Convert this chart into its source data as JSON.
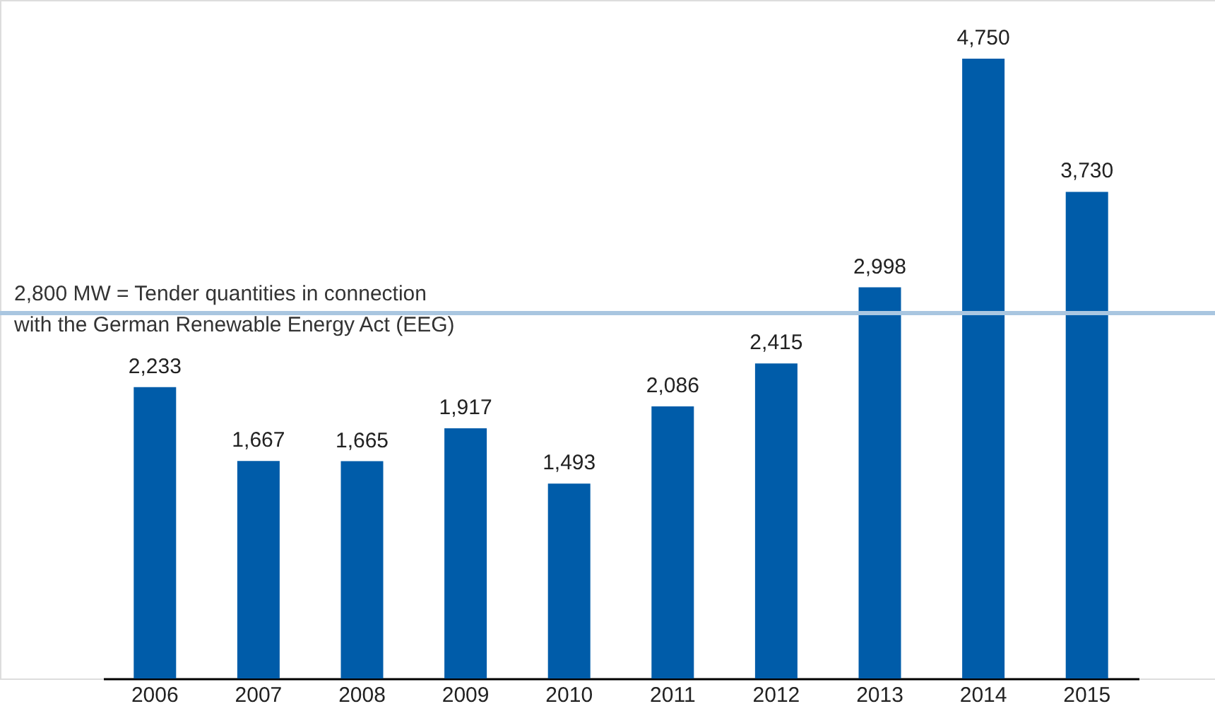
{
  "chart_data": {
    "type": "bar",
    "categories": [
      "2006",
      "2007",
      "2008",
      "2009",
      "2010",
      "2011",
      "2012",
      "2013",
      "2014",
      "2015"
    ],
    "values": [
      2233,
      1667,
      1665,
      1917,
      1493,
      2086,
      2415,
      2998,
      4750,
      3730
    ],
    "color": "#005ca9",
    "value_labels": [
      "2,233",
      "1,667",
      "1,665",
      "1,917",
      "1,493",
      "2,086",
      "2,415",
      "2,998",
      "4,750",
      "3,730"
    ],
    "ylim": [
      0,
      5200
    ],
    "tick_labels": "x",
    "grid": false,
    "ref_lines": [
      {
        "axis": "y",
        "value": 2800,
        "label": "2,800 MW = Tender quantities in connection\nwith the German Renewable Energy Act (EEG)",
        "color": "#a9c6e0",
        "line_style": "solid"
      }
    ]
  }
}
